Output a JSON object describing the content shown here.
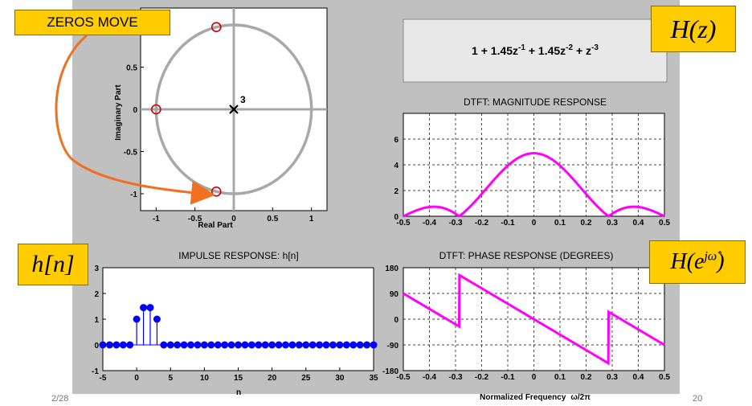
{
  "callouts": {
    "zeros_move": "ZEROS MOVE",
    "hz_label": "H(z)",
    "hn_label": "h[n]",
    "hejw_label": "H(e^{jω̂})"
  },
  "transfer_function": {
    "formula": "1 + 1.45z^{-1} + 1.45z^{-2} + z^{-3}"
  },
  "footer": {
    "left": "2/28",
    "right": "20"
  },
  "colors": {
    "panel": "#c0c0c0",
    "callout": "#ffcc00",
    "magenta": "#ff00ff",
    "stem": "#0000ff",
    "zero_marker": "#cc0000",
    "arrow": "#f07020"
  },
  "chart_data": [
    {
      "id": "pole_zero",
      "type": "scatter",
      "title": "",
      "xlabel": "Real Part",
      "ylabel": "Imaginary Part",
      "xlim": [
        -1.2,
        1.2
      ],
      "ylim": [
        -1.2,
        1.2
      ],
      "xticks": [
        -1,
        -0.5,
        0,
        0.5,
        1
      ],
      "yticks": [
        -1,
        -0.5,
        0,
        0.5
      ],
      "zeros": [
        [
          -1,
          0
        ],
        [
          -0.225,
          0.974
        ],
        [
          -0.225,
          -0.974
        ]
      ],
      "poles": [
        [
          0,
          0
        ]
      ],
      "pole_multiplicity": "3",
      "unit_circle": true,
      "grid": false
    },
    {
      "id": "magnitude",
      "type": "line",
      "title": "DTFT:   MAGNITUDE RESPONSE",
      "xlim": [
        -0.5,
        0.5
      ],
      "ylim": [
        0,
        8
      ],
      "xticks": [
        "-0.5",
        "-0.4",
        "-0.3",
        "-0.2",
        "-0.1",
        "0",
        "0.1",
        "0.2",
        "0.3",
        "0.4",
        "0.5"
      ],
      "yticks": [
        "0",
        "2",
        "4",
        "6"
      ],
      "coefficients": [
        1,
        1.45,
        1.45,
        1
      ],
      "grid": true
    },
    {
      "id": "impulse",
      "type": "stem",
      "title": "IMPULSE RESPONSE:  h[n]",
      "xlabel": "n",
      "xlim": [
        -5,
        35
      ],
      "ylim": [
        -1,
        3
      ],
      "xticks": [
        "-5",
        "0",
        "5",
        "10",
        "15",
        "20",
        "25",
        "30",
        "35"
      ],
      "yticks": [
        "-1",
        "0",
        "1",
        "2",
        "3"
      ],
      "n_range": [
        -5,
        35
      ],
      "nonzero": {
        "0": 1,
        "1": 1.45,
        "2": 1.45,
        "3": 1
      },
      "grid": false
    },
    {
      "id": "phase",
      "type": "line",
      "title": "DTFT:   PHASE RESPONSE (DEGREES)",
      "xlabel": "Normalized Frequency",
      "xlabel_symbol": "ω/2π",
      "xlim": [
        -0.5,
        0.5
      ],
      "ylim": [
        -180,
        180
      ],
      "xticks": [
        "-0.5",
        "-0.4",
        "-0.3",
        "-0.2",
        "-0.1",
        "0",
        "0.1",
        "0.2",
        "0.3",
        "0.4",
        "0.5"
      ],
      "yticks": [
        "-180",
        "-90",
        "0",
        "90",
        "180"
      ],
      "coefficients": [
        1,
        1.45,
        1.45,
        1
      ],
      "grid": true
    }
  ]
}
